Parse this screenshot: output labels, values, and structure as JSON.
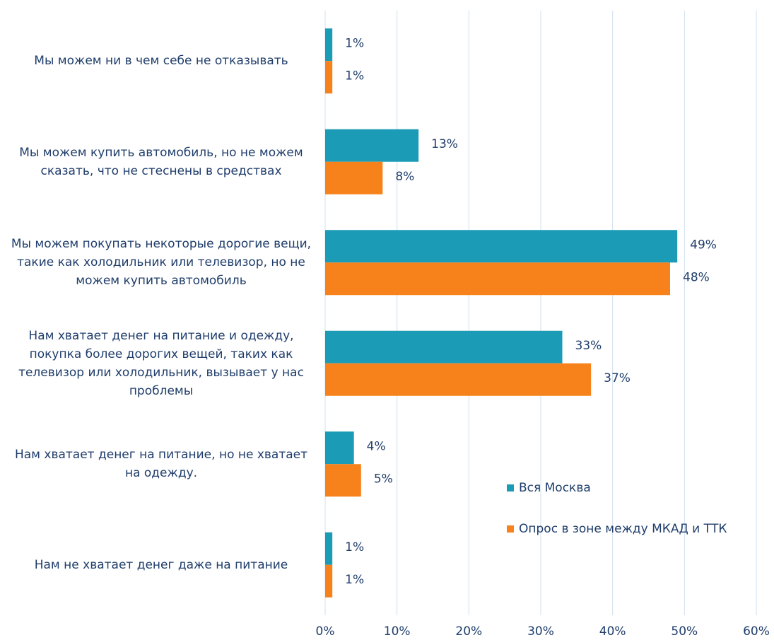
{
  "chart_data": {
    "type": "bar",
    "orientation": "horizontal",
    "categories": [
      "Мы можем ни в чем себе не отказывать",
      "Мы можем купить автомобиль, но не можем сказать, что не стеснены в средствах",
      "Мы можем покупать некоторые дорогие вещи, такие как холодильник или телевизор, но не можем купить автомобиль",
      "Нам хватает денег на питание и одежду, покупка более дорогих вещей, таких как телевизор  или холодильник, вызывает у нас проблемы",
      "Нам хватает денег на питание, но не хватает на одежду.",
      "Нам не хватает денег даже на питание"
    ],
    "series": [
      {
        "name": "Вся Москва",
        "color": "#1b9bb6",
        "values": [
          1,
          13,
          49,
          33,
          4,
          1
        ],
        "value_labels": [
          "1%",
          "13%",
          "49%",
          "33%",
          "4%",
          "1%"
        ]
      },
      {
        "name": "Опрос в зоне между МКАД и ТТК",
        "color": "#f7821c",
        "values": [
          1,
          8,
          48,
          37,
          5,
          1
        ],
        "value_labels": [
          "1%",
          "8%",
          "48%",
          "37%",
          "5%",
          "1%"
        ]
      }
    ],
    "xlim": [
      0,
      60
    ],
    "xticks": [
      {
        "value": 0,
        "label": "0%"
      },
      {
        "value": 10,
        "label": "10%"
      },
      {
        "value": 20,
        "label": "20%"
      },
      {
        "value": 30,
        "label": "30%"
      },
      {
        "value": 40,
        "label": "40%"
      },
      {
        "value": 50,
        "label": "50%"
      },
      {
        "value": 60,
        "label": "60%"
      }
    ],
    "grid": true,
    "legend": "right"
  }
}
